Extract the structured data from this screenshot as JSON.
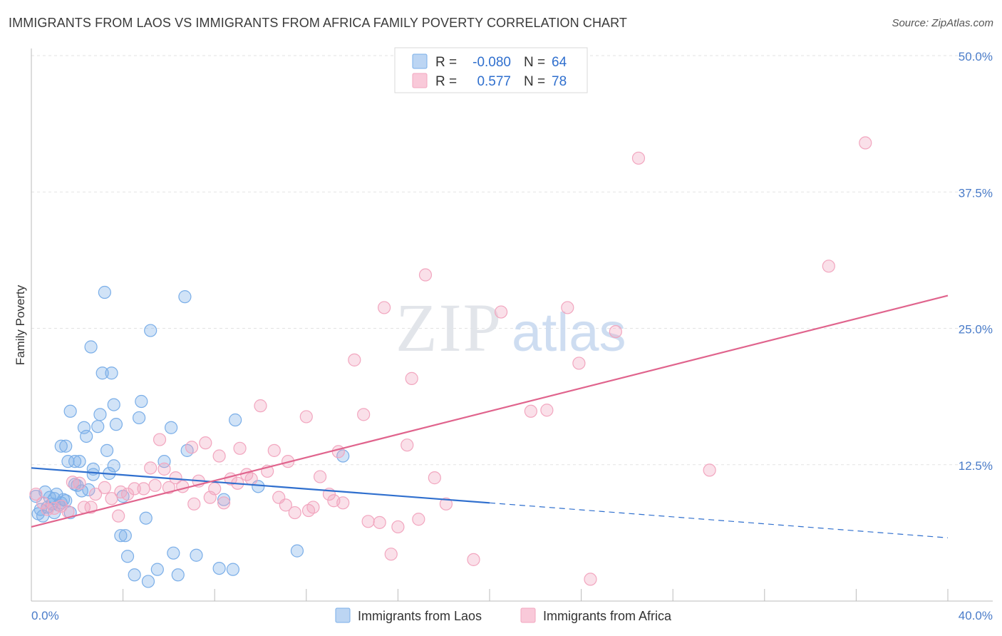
{
  "chart_data": {
    "type": "scatter",
    "title": "IMMIGRANTS FROM LAOS VS IMMIGRANTS FROM AFRICA FAMILY POVERTY CORRELATION CHART",
    "source": "Source: ZipAtlas.com",
    "ylabel": "Family Poverty",
    "xlabel": "",
    "xlim": [
      0,
      40
    ],
    "ylim": [
      0,
      50
    ],
    "x_tick_labels": [
      "0.0%",
      "40.0%"
    ],
    "y_ticks": [
      12.5,
      25.0,
      37.5,
      50.0
    ],
    "y_tick_labels": [
      "12.5%",
      "25.0%",
      "37.5%",
      "50.0%"
    ],
    "watermark": {
      "zip": "ZIP",
      "atlas": "atlas"
    },
    "legend": [
      {
        "r_label": "R =",
        "r_value": "-0.080",
        "n_label": "N =",
        "n_value": "64"
      },
      {
        "r_label": "R =",
        "r_value": "0.577",
        "n_label": "N =",
        "n_value": "78"
      }
    ],
    "series": [
      {
        "name": "Immigrants from Laos",
        "color": "#7aaee8",
        "line_color": "#2f6fce",
        "trend": {
          "x0": 0,
          "y0": 12.2,
          "x1": 20,
          "y1": 9.0,
          "dash_to_x": 40,
          "dash_to_y": 5.8
        },
        "points": [
          [
            0.2,
            9.6
          ],
          [
            0.3,
            8.0
          ],
          [
            0.4,
            8.4
          ],
          [
            0.5,
            7.8
          ],
          [
            0.6,
            10.0
          ],
          [
            0.7,
            8.6
          ],
          [
            0.8,
            9.5
          ],
          [
            0.9,
            8.9
          ],
          [
            1.0,
            8.1
          ],
          [
            1.0,
            9.4
          ],
          [
            1.1,
            9.8
          ],
          [
            1.2,
            8.8
          ],
          [
            1.3,
            9.0
          ],
          [
            1.3,
            14.2
          ],
          [
            1.4,
            9.3
          ],
          [
            1.5,
            14.2
          ],
          [
            1.5,
            9.2
          ],
          [
            1.6,
            12.8
          ],
          [
            1.7,
            8.1
          ],
          [
            1.7,
            17.4
          ],
          [
            1.9,
            10.7
          ],
          [
            1.9,
            12.8
          ],
          [
            2.0,
            10.6
          ],
          [
            2.1,
            12.8
          ],
          [
            2.2,
            10.1
          ],
          [
            2.3,
            15.9
          ],
          [
            2.4,
            15.1
          ],
          [
            2.5,
            10.2
          ],
          [
            2.6,
            23.3
          ],
          [
            2.7,
            11.6
          ],
          [
            2.7,
            12.1
          ],
          [
            2.9,
            16.0
          ],
          [
            3.0,
            17.1
          ],
          [
            3.1,
            20.9
          ],
          [
            3.2,
            28.3
          ],
          [
            3.3,
            13.8
          ],
          [
            3.4,
            11.7
          ],
          [
            3.5,
            20.9
          ],
          [
            3.6,
            12.4
          ],
          [
            3.6,
            18.0
          ],
          [
            3.7,
            16.2
          ],
          [
            3.9,
            6.0
          ],
          [
            4.0,
            9.6
          ],
          [
            4.1,
            6.0
          ],
          [
            4.2,
            4.1
          ],
          [
            4.5,
            2.4
          ],
          [
            4.7,
            16.8
          ],
          [
            4.8,
            18.3
          ],
          [
            5.0,
            7.6
          ],
          [
            5.1,
            1.8
          ],
          [
            5.2,
            24.8
          ],
          [
            5.5,
            2.9
          ],
          [
            5.8,
            12.8
          ],
          [
            6.1,
            15.9
          ],
          [
            6.2,
            4.4
          ],
          [
            6.4,
            2.4
          ],
          [
            6.7,
            27.9
          ],
          [
            6.8,
            13.8
          ],
          [
            7.2,
            4.2
          ],
          [
            8.2,
            3.0
          ],
          [
            8.4,
            9.3
          ],
          [
            8.8,
            2.9
          ],
          [
            8.9,
            16.6
          ],
          [
            9.9,
            10.5
          ],
          [
            11.6,
            4.6
          ],
          [
            13.6,
            13.3
          ]
        ]
      },
      {
        "name": "Immigrants from Africa",
        "color": "#f2a6bf",
        "line_color": "#e0648d",
        "trend": {
          "x0": 0,
          "y0": 6.8,
          "x1": 40,
          "y1": 28.0
        },
        "points": [
          [
            0.2,
            9.8
          ],
          [
            0.5,
            9.0
          ],
          [
            0.7,
            8.4
          ],
          [
            1.0,
            8.5
          ],
          [
            1.3,
            8.7
          ],
          [
            1.6,
            8.2
          ],
          [
            1.8,
            10.9
          ],
          [
            2.1,
            10.8
          ],
          [
            2.3,
            8.6
          ],
          [
            2.6,
            8.6
          ],
          [
            2.8,
            9.8
          ],
          [
            3.2,
            10.4
          ],
          [
            3.5,
            9.4
          ],
          [
            3.8,
            7.8
          ],
          [
            3.9,
            10.0
          ],
          [
            4.2,
            9.8
          ],
          [
            4.5,
            10.3
          ],
          [
            4.9,
            10.3
          ],
          [
            5.2,
            12.2
          ],
          [
            5.4,
            10.6
          ],
          [
            5.6,
            14.8
          ],
          [
            5.8,
            12.1
          ],
          [
            6.0,
            10.4
          ],
          [
            6.3,
            11.3
          ],
          [
            6.6,
            10.5
          ],
          [
            7.0,
            14.1
          ],
          [
            7.1,
            8.9
          ],
          [
            7.3,
            11.0
          ],
          [
            7.6,
            14.5
          ],
          [
            7.8,
            9.5
          ],
          [
            8.0,
            10.3
          ],
          [
            8.2,
            13.3
          ],
          [
            8.4,
            9.0
          ],
          [
            8.7,
            11.2
          ],
          [
            9.0,
            10.8
          ],
          [
            9.1,
            14.0
          ],
          [
            9.4,
            11.6
          ],
          [
            9.6,
            11.2
          ],
          [
            10.0,
            17.9
          ],
          [
            10.3,
            11.9
          ],
          [
            10.6,
            13.8
          ],
          [
            10.8,
            9.5
          ],
          [
            11.1,
            8.8
          ],
          [
            11.2,
            12.8
          ],
          [
            11.5,
            8.1
          ],
          [
            12.0,
            16.9
          ],
          [
            12.1,
            8.3
          ],
          [
            12.3,
            8.6
          ],
          [
            12.6,
            11.4
          ],
          [
            13.0,
            9.8
          ],
          [
            13.2,
            9.2
          ],
          [
            13.4,
            13.7
          ],
          [
            13.6,
            9.0
          ],
          [
            14.1,
            22.1
          ],
          [
            14.5,
            17.1
          ],
          [
            14.7,
            7.3
          ],
          [
            15.2,
            7.2
          ],
          [
            15.4,
            26.9
          ],
          [
            15.7,
            4.3
          ],
          [
            16.0,
            6.8
          ],
          [
            16.4,
            14.3
          ],
          [
            16.6,
            20.4
          ],
          [
            16.9,
            7.5
          ],
          [
            17.2,
            29.9
          ],
          [
            17.6,
            11.3
          ],
          [
            18.1,
            8.9
          ],
          [
            19.3,
            3.8
          ],
          [
            20.5,
            26.5
          ],
          [
            21.8,
            17.4
          ],
          [
            22.5,
            17.5
          ],
          [
            23.4,
            26.9
          ],
          [
            23.9,
            21.8
          ],
          [
            24.4,
            2.0
          ],
          [
            25.5,
            24.7
          ],
          [
            26.5,
            40.6
          ],
          [
            29.6,
            12.0
          ],
          [
            34.8,
            30.7
          ],
          [
            36.4,
            42.0
          ]
        ]
      }
    ]
  }
}
